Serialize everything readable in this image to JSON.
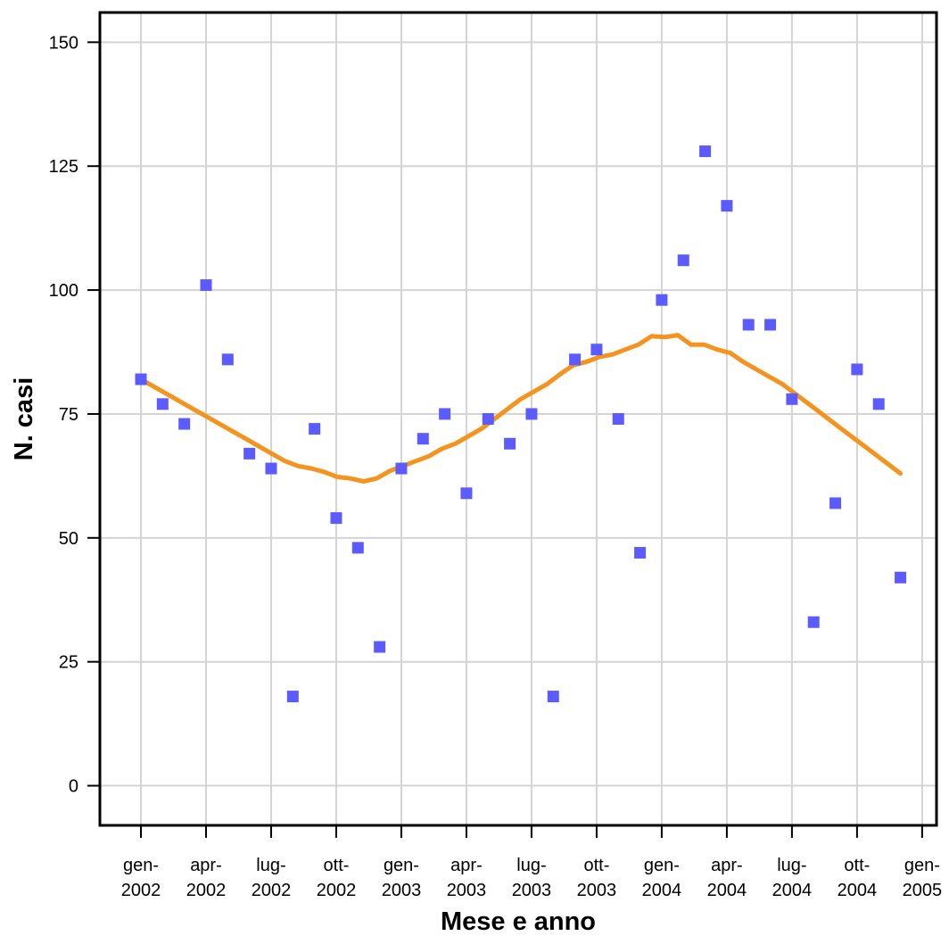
{
  "chart_data": {
    "type": "scatter",
    "xlabel": "Mese e anno",
    "ylabel": "N. casi",
    "ylim": [
      -8,
      156
    ],
    "y_ticks": [
      0,
      25,
      50,
      75,
      100,
      125,
      150
    ],
    "x_ticks": [
      {
        "line1": "gen-",
        "line2": "2002"
      },
      {
        "line1": "apr-",
        "line2": "2002"
      },
      {
        "line1": "lug-",
        "line2": "2002"
      },
      {
        "line1": "ott-",
        "line2": "2002"
      },
      {
        "line1": "gen-",
        "line2": "2003"
      },
      {
        "line1": "apr-",
        "line2": "2003"
      },
      {
        "line1": "lug-",
        "line2": "2003"
      },
      {
        "line1": "ott-",
        "line2": "2003"
      },
      {
        "line1": "gen-",
        "line2": "2004"
      },
      {
        "line1": "apr-",
        "line2": "2004"
      },
      {
        "line1": "lug-",
        "line2": "2004"
      },
      {
        "line1": "ott-",
        "line2": "2004"
      },
      {
        "line1": "gen-",
        "line2": "2005"
      }
    ],
    "grid": true,
    "points": {
      "color": "#5b5bff",
      "values": [
        82,
        77,
        73,
        101,
        86,
        67,
        64,
        18,
        72,
        54,
        48,
        28,
        64,
        70,
        75,
        59,
        74,
        69,
        75,
        18,
        86,
        88,
        74,
        47,
        98,
        106,
        128,
        117,
        93,
        93,
        78,
        33,
        57,
        84,
        77,
        42
      ]
    },
    "trend": {
      "color": "#f5931f",
      "values": [
        82,
        80.5,
        79,
        77.5,
        76,
        74.5,
        73,
        71.5,
        70,
        68.5,
        67,
        65.5,
        64.5,
        64,
        63.3,
        62.3,
        62,
        61.4,
        62,
        63.5,
        64.5,
        65.5,
        66.5,
        68,
        69,
        70.5,
        72,
        74,
        76,
        78,
        79.5,
        81,
        83,
        84.8,
        85.5,
        86.5,
        87,
        88,
        89,
        90.7,
        90.5,
        90.9,
        89,
        89,
        88,
        87.3,
        85.5,
        84,
        82.5,
        81,
        79,
        77,
        75,
        73,
        71,
        69,
        67,
        65,
        63
      ]
    }
  }
}
